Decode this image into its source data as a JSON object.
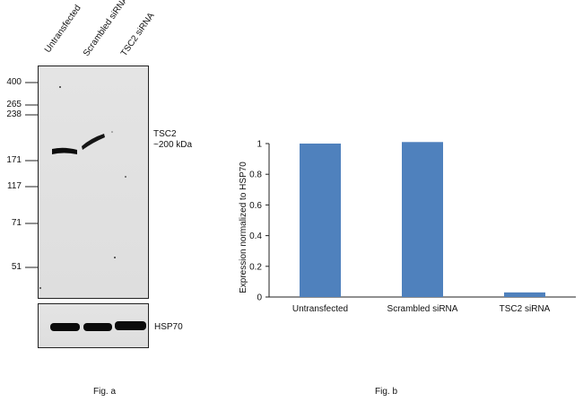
{
  "fig_a": {
    "caption": "Fig. a",
    "lanes": [
      "Untransfected",
      "Scrambled siRNA",
      "TSC2 siRNA"
    ],
    "markers": [
      "400",
      "265",
      "238",
      "171",
      "117",
      "71",
      "51"
    ],
    "target_label_line1": "TSC2",
    "target_label_line2": "~200 kDa",
    "loading_control_label": "HSP70"
  },
  "fig_b": {
    "caption": "Fig. b"
  },
  "chart_data": {
    "type": "bar",
    "categories": [
      "Untransfected",
      "Scrambled siRNA",
      "TSC2 siRNA"
    ],
    "values": [
      1.0,
      1.01,
      0.03
    ],
    "title": "",
    "xlabel": "",
    "ylabel": "Expression normalized to HSP70",
    "ylim": [
      0,
      1
    ],
    "yticks": [
      "0",
      "0.2",
      "0.4",
      "0.6",
      "0.8",
      "1"
    ],
    "grid": false,
    "bar_color": "#4f81bd"
  }
}
